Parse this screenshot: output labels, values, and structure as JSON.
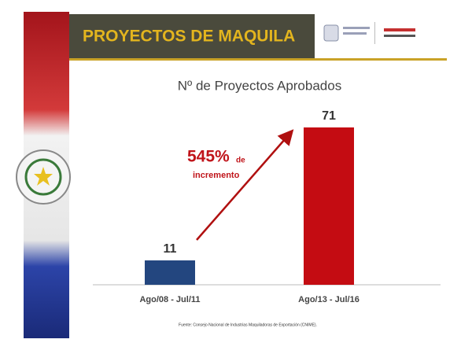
{
  "header": {
    "title": "PROYECTOS DE MAQUILA"
  },
  "chart_data": {
    "type": "bar",
    "title": "Nº de Proyectos Aprobados",
    "categories": [
      "Ago/08 - Jul/11",
      "Ago/13 - Jul/16"
    ],
    "values": [
      11,
      71
    ],
    "colors": [
      "#23467f",
      "#c40c12"
    ],
    "annotations": [
      "545%",
      "de",
      "incremento"
    ],
    "source": "Fuente: Consejo Nacional de Industrias Maquiladoras de Exportación (CNIME)."
  }
}
